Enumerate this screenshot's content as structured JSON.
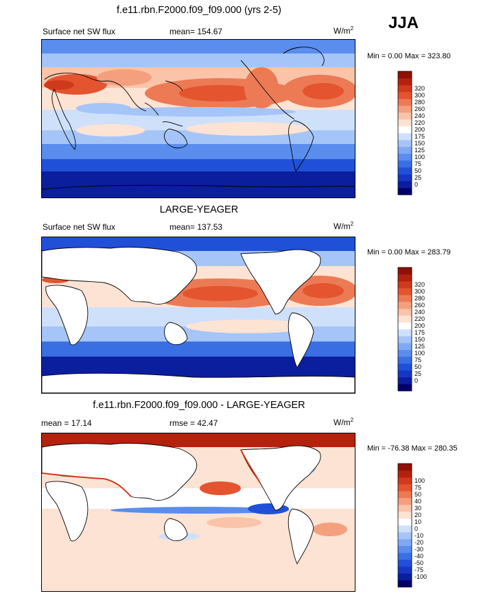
{
  "season": "JJA",
  "palettes": {
    "sw": [
      "#04006a",
      "#0a1e9e",
      "#1537c4",
      "#2150d8",
      "#3a6fe3",
      "#5a8ded",
      "#7faaf3",
      "#a5c5f8",
      "#cfe0fb",
      "#ffffff",
      "#fde3d4",
      "#f9c4a9",
      "#f4a07e",
      "#ec7a55",
      "#e3542f",
      "#cf3a1c",
      "#b4220e",
      "#8f1104"
    ],
    "diff": [
      "#04006a",
      "#0a1e9e",
      "#1537c4",
      "#2150d8",
      "#3a6fe3",
      "#5a8ded",
      "#7faaf3",
      "#a5c5f8",
      "#cfe0fb",
      "#ffffff",
      "#fde3d4",
      "#f9c4a9",
      "#f4a07e",
      "#ec7a55",
      "#e3542f",
      "#cf3a1c",
      "#b4220e",
      "#8f1104"
    ]
  },
  "panels": [
    {
      "title": "f.e11.rbn.F2000.f09_f09.000 (yrs 2-5)",
      "left_label": "Surface net SW flux",
      "stat_label": "mean= 154.67",
      "units": "W/m",
      "units_exp": "2",
      "minmax": "Min =   0.00 Max = 323.80",
      "colorbar_labels": [
        "320",
        "300",
        "280",
        "260",
        "240",
        "220",
        "200",
        "175",
        "150",
        "125",
        "100",
        "75",
        "50",
        "25",
        "0"
      ]
    },
    {
      "title": "LARGE-YEAGER",
      "left_label": "Surface net SW flux",
      "stat_label": "mean= 137.53",
      "units": "W/m",
      "units_exp": "2",
      "minmax": "Min =   0.00 Max = 283.79",
      "colorbar_labels": [
        "320",
        "300",
        "280",
        "260",
        "240",
        "220",
        "200",
        "175",
        "150",
        "125",
        "100",
        "75",
        "50",
        "25",
        "0"
      ]
    },
    {
      "title": "f.e11.rbn.F2000.f09_f09.000 - LARGE-YEAGER",
      "left_label": "mean =  17.14",
      "stat_label": "rmse =  42.47",
      "units": "W/m",
      "units_exp": "2",
      "minmax": "Min = -76.38 Max = 280.35",
      "colorbar_labels": [
        "100",
        "75",
        "50",
        "40",
        "30",
        "20",
        "10",
        "0",
        "-10",
        "-20",
        "-30",
        "-40",
        "-50",
        "-75",
        "-100"
      ]
    }
  ]
}
